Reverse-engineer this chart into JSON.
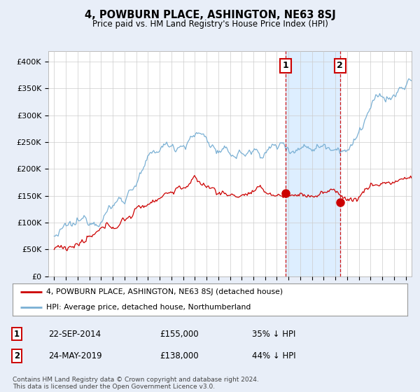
{
  "title": "4, POWBURN PLACE, ASHINGTON, NE63 8SJ",
  "subtitle": "Price paid vs. HM Land Registry's House Price Index (HPI)",
  "ylabel_ticks": [
    "£0",
    "£50K",
    "£100K",
    "£150K",
    "£200K",
    "£250K",
    "£300K",
    "£350K",
    "£400K"
  ],
  "ytick_values": [
    0,
    50000,
    100000,
    150000,
    200000,
    250000,
    300000,
    350000,
    400000
  ],
  "ylim": [
    0,
    420000
  ],
  "xlim_year": [
    1994.5,
    2025.5
  ],
  "hpi_color": "#7ab0d4",
  "price_color": "#cc0000",
  "shade_color": "#ddeeff",
  "marker1_date": 2014.73,
  "marker1_price": 155000,
  "marker1_label": "1",
  "marker1_date_str": "22-SEP-2014",
  "marker1_price_str": "£155,000",
  "marker1_pct": "35% ↓ HPI",
  "marker2_date": 2019.39,
  "marker2_price": 138000,
  "marker2_label": "2",
  "marker2_date_str": "24-MAY-2019",
  "marker2_price_str": "£138,000",
  "marker2_pct": "44% ↓ HPI",
  "legend_line1": "4, POWBURN PLACE, ASHINGTON, NE63 8SJ (detached house)",
  "legend_line2": "HPI: Average price, detached house, Northumberland",
  "footnote": "Contains HM Land Registry data © Crown copyright and database right 2024.\nThis data is licensed under the Open Government Licence v3.0.",
  "background_color": "#e8eef8",
  "plot_bg_color": "#ffffff",
  "grid_color": "#cccccc"
}
